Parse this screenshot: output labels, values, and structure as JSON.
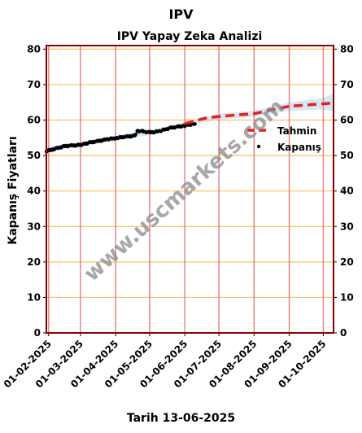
{
  "header": {
    "suptitle": "IPV",
    "footer": "Tarih 13-06-2025"
  },
  "watermark": "www.uscmarkets.com",
  "colors": {
    "forecast": "#ee1c1c",
    "actual": "#000000",
    "band": "#b9d8ee",
    "vgrid": "#e07070",
    "hgrid": "#f5c36a",
    "spine": "#8b0000",
    "early": "#8a2be2"
  },
  "chart_data": {
    "type": "line",
    "title": "IPV Yapay Zeka Analizi",
    "xlabel": "",
    "ylabel": "Kapanış Fiyatları",
    "ylim": [
      0,
      81
    ],
    "yticks": [
      0,
      10,
      20,
      30,
      40,
      50,
      60,
      70,
      80
    ],
    "xlim": [
      "2025-01-30",
      "2025-10-10"
    ],
    "xticks": [
      "2025-02-01",
      "2025-03-01",
      "2025-04-01",
      "2025-05-01",
      "2025-06-01",
      "2025-07-01",
      "2025-08-01",
      "2025-09-01",
      "2025-10-01"
    ],
    "xtick_labels": [
      "01-02-2025",
      "01-03-2025",
      "01-04-2025",
      "01-05-2025",
      "01-06-2025",
      "01-07-2025",
      "01-08-2025",
      "01-09-2025",
      "01-10-2025"
    ],
    "legend_position": "right",
    "series": [
      {
        "name": "Tahmin",
        "style": "dashed",
        "points": [
          [
            "2025-06-01",
            59.0
          ],
          [
            "2025-06-10",
            59.8
          ],
          [
            "2025-06-20",
            60.6
          ],
          [
            "2025-07-01",
            61.0
          ],
          [
            "2025-07-15",
            61.4
          ],
          [
            "2025-08-01",
            61.8
          ],
          [
            "2025-08-15",
            62.8
          ],
          [
            "2025-09-01",
            63.9
          ],
          [
            "2025-09-15",
            64.2
          ],
          [
            "2025-10-01",
            64.6
          ],
          [
            "2025-10-10",
            64.8
          ]
        ]
      },
      {
        "name": "Kapanış",
        "style": "scatter",
        "points": [
          [
            "2025-01-30",
            51.2
          ],
          [
            "2025-02-05",
            51.8
          ],
          [
            "2025-02-10",
            52.2
          ],
          [
            "2025-02-15",
            52.6
          ],
          [
            "2025-02-20",
            52.8
          ],
          [
            "2025-02-25",
            52.9
          ],
          [
            "2025-03-01",
            53.0
          ],
          [
            "2025-03-05",
            53.3
          ],
          [
            "2025-03-10",
            53.7
          ],
          [
            "2025-03-15",
            54.0
          ],
          [
            "2025-03-20",
            54.3
          ],
          [
            "2025-03-25",
            54.6
          ],
          [
            "2025-04-01",
            54.9
          ],
          [
            "2025-04-05",
            55.1
          ],
          [
            "2025-04-10",
            55.3
          ],
          [
            "2025-04-15",
            55.5
          ],
          [
            "2025-04-18",
            55.6
          ],
          [
            "2025-04-20",
            57.0
          ],
          [
            "2025-04-25",
            56.8
          ],
          [
            "2025-05-01",
            56.5
          ],
          [
            "2025-05-05",
            56.6
          ],
          [
            "2025-05-10",
            56.9
          ],
          [
            "2025-05-15",
            57.4
          ],
          [
            "2025-05-20",
            57.8
          ],
          [
            "2025-05-25",
            58.1
          ],
          [
            "2025-06-01",
            58.4
          ],
          [
            "2025-06-05",
            58.7
          ],
          [
            "2025-06-10",
            58.9
          ]
        ]
      }
    ],
    "band": {
      "upper": [
        [
          "2025-01-30",
          52.0
        ],
        [
          "2025-02-15",
          53.4
        ],
        [
          "2025-03-01",
          53.7
        ],
        [
          "2025-04-01",
          55.6
        ],
        [
          "2025-05-01",
          57.2
        ],
        [
          "2025-06-01",
          59.4
        ],
        [
          "2025-07-01",
          61.8
        ],
        [
          "2025-08-01",
          62.6
        ],
        [
          "2025-09-01",
          65.0
        ],
        [
          "2025-10-01",
          66.2
        ],
        [
          "2025-10-10",
          67.5
        ]
      ],
      "lower": [
        [
          "2025-01-30",
          50.6
        ],
        [
          "2025-02-15",
          51.9
        ],
        [
          "2025-03-01",
          52.4
        ],
        [
          "2025-04-01",
          54.2
        ],
        [
          "2025-05-01",
          55.8
        ],
        [
          "2025-06-01",
          58.2
        ],
        [
          "2025-07-01",
          60.2
        ],
        [
          "2025-08-01",
          61.0
        ],
        [
          "2025-09-01",
          62.6
        ],
        [
          "2025-10-01",
          63.0
        ],
        [
          "2025-10-10",
          62.4
        ]
      ]
    }
  }
}
